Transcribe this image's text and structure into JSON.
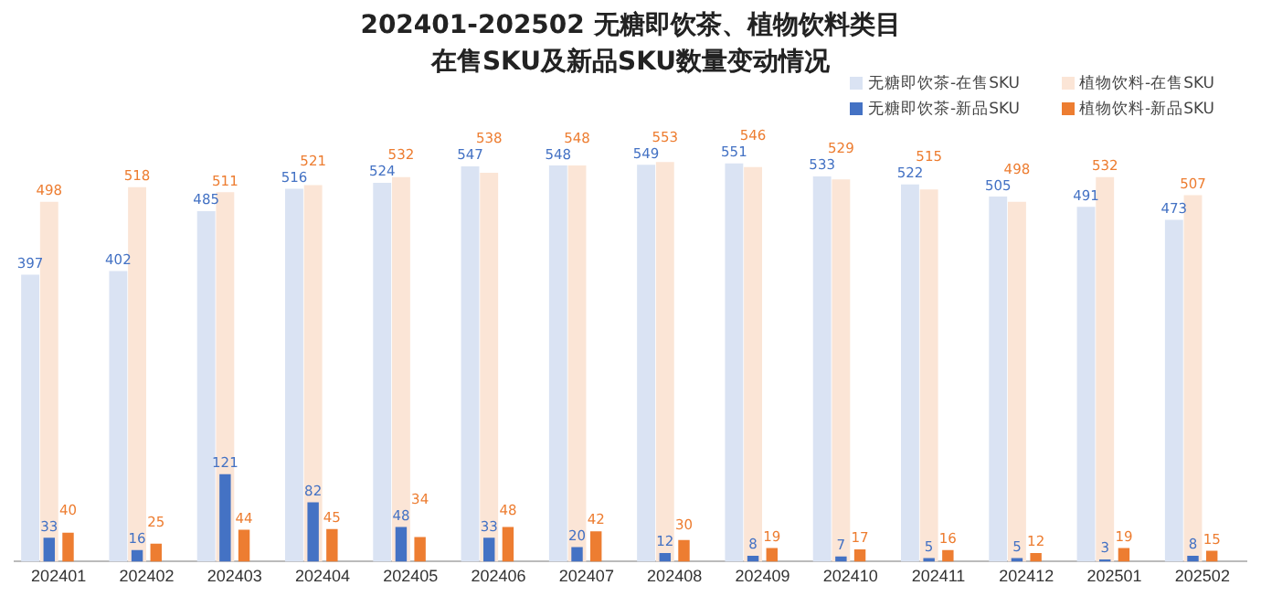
{
  "chart_data": {
    "type": "bar",
    "title": "202401-202502 无糖即饮茶、植物饮料类目",
    "subtitle": "在售SKU及新品SKU数量变动情况",
    "categories": [
      "202401",
      "202402",
      "202403",
      "202404",
      "202405",
      "202406",
      "202407",
      "202408",
      "202409",
      "202410",
      "202411",
      "202412",
      "202501",
      "202502"
    ],
    "series": [
      {
        "name": "无糖即饮茶-在售SKU",
        "color": "#dae3f3",
        "values": [
          397,
          402,
          485,
          516,
          524,
          547,
          548,
          549,
          551,
          533,
          522,
          505,
          491,
          473
        ]
      },
      {
        "name": "植物饮料-在售SKU",
        "color": "#fbe5d6",
        "values": [
          498,
          518,
          511,
          521,
          532,
          538,
          548,
          553,
          546,
          529,
          515,
          498,
          532,
          507
        ]
      },
      {
        "name": "无糖即饮茶-新品SKU",
        "color": "#4472c4",
        "values": [
          33,
          16,
          121,
          82,
          48,
          33,
          20,
          12,
          8,
          7,
          5,
          5,
          3,
          8
        ]
      },
      {
        "name": "植物饮料-新品SKU",
        "color": "#ed7d31",
        "values": [
          40,
          25,
          44,
          45,
          34,
          48,
          42,
          30,
          19,
          17,
          16,
          12,
          19,
          15
        ]
      }
    ],
    "data_labels": true,
    "legend": "top right",
    "tick_labels": "x",
    "grid": false
  }
}
